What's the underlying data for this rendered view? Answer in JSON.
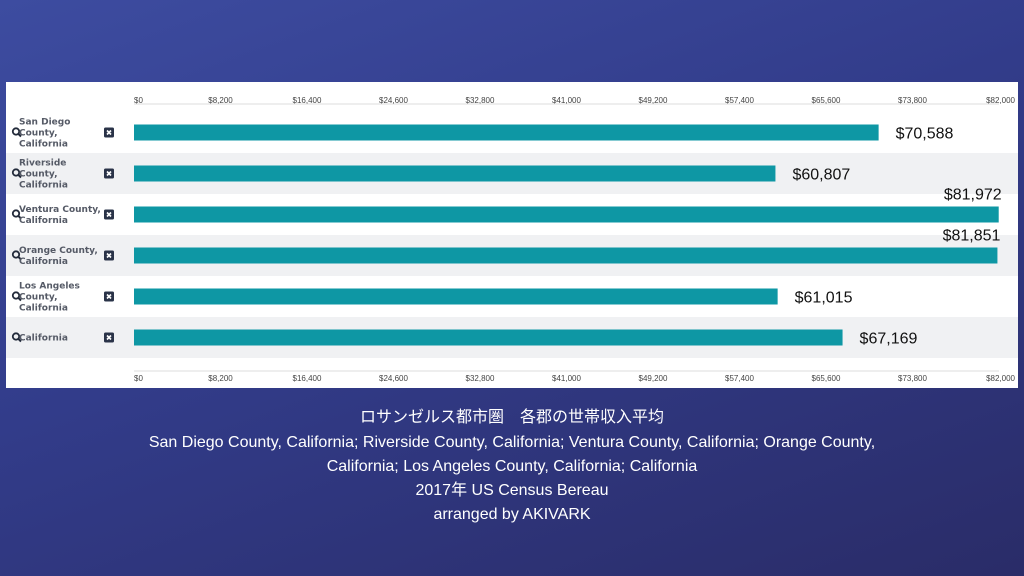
{
  "chart_data": {
    "type": "bar",
    "orientation": "horizontal",
    "categories": [
      [
        "San Diego",
        "County,",
        "California"
      ],
      [
        "Riverside",
        "County,",
        "California"
      ],
      [
        "Ventura County,",
        "California"
      ],
      [
        "Orange County,",
        "California"
      ],
      [
        "Los Angeles",
        "County,",
        "California"
      ],
      [
        "California"
      ]
    ],
    "values": [
      70588,
      60807,
      81972,
      81851,
      61015,
      67169
    ],
    "value_labels": [
      "$70,588",
      "$60,807",
      "$81,972",
      "$81,851",
      "$61,015",
      "$67,169"
    ],
    "ticks": [
      "$0",
      "$8,200",
      "$16,400",
      "$24,600",
      "$32,800",
      "$41,000",
      "$49,200",
      "$57,400",
      "$65,600",
      "$73,800",
      "$82,000"
    ],
    "xlim": [
      0,
      82000
    ],
    "bar_color": "#0e97a4",
    "row_icons": [
      "search-icon",
      "remove-icon"
    ]
  },
  "caption": {
    "title": "ロサンゼルス都市圏　各郡の世帯収入平均",
    "line1": "San Diego County, California; Riverside County, California; Ventura County, California; Orange County,",
    "line2": "California; Los Angeles County, California; California",
    "source": "2017年 US Census Bereau",
    "credit": "arranged by AKIVARK"
  }
}
